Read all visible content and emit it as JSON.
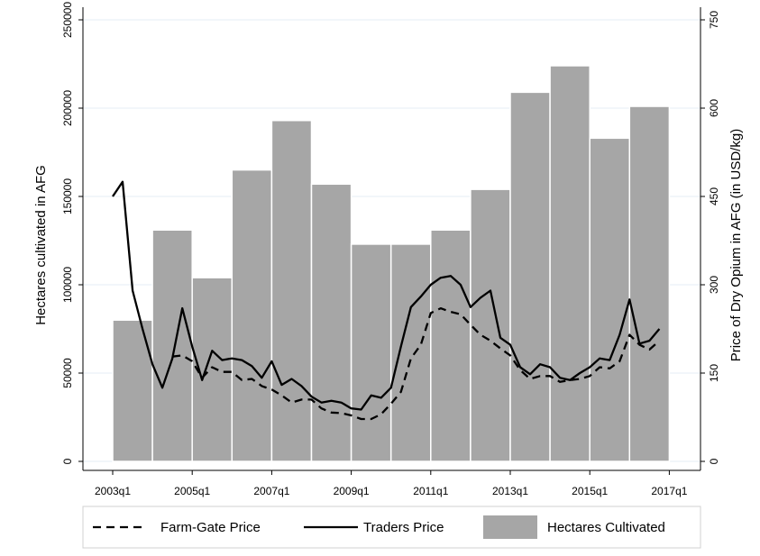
{
  "chart_data": {
    "type": "bar+line",
    "x_ticks": [
      "2003q1",
      "2005q1",
      "2007q1",
      "2009q1",
      "2011q1",
      "2013q1",
      "2015q1",
      "2017q1"
    ],
    "y_left": {
      "label": "Hectares cultivated in AFG",
      "ticks": [
        "0",
        "50000",
        "100000",
        "150000",
        "200000",
        "250000"
      ],
      "range": [
        0,
        250000
      ]
    },
    "y_right": {
      "label": "Price of Dry Opium in AFG (in USD/kg)",
      "ticks": [
        "0",
        "150",
        "300",
        "450",
        "600",
        "750"
      ],
      "range": [
        0,
        750
      ]
    },
    "bars": {
      "name": "Hectares Cultivated",
      "color": "#a6a6a6",
      "years": [
        2003,
        2004,
        2005,
        2006,
        2007,
        2008,
        2009,
        2010,
        2011,
        2012,
        2013,
        2014,
        2015,
        2016
      ],
      "values": [
        80000,
        131000,
        104000,
        165000,
        193000,
        157000,
        123000,
        123000,
        131000,
        154000,
        209000,
        224000,
        183000,
        201000
      ]
    },
    "series": [
      {
        "name": "Traders Price",
        "style": "solid",
        "x": [
          2003.0,
          2003.25,
          2003.5,
          2003.75,
          2004.0,
          2004.25,
          2004.5,
          2004.75,
          2005.0,
          2005.25,
          2005.5,
          2005.75,
          2006.0,
          2006.25,
          2006.5,
          2006.75,
          2007.0,
          2007.25,
          2007.5,
          2007.75,
          2008.0,
          2008.25,
          2008.5,
          2008.75,
          2009.0,
          2009.25,
          2009.5,
          2009.75,
          2010.0,
          2010.25,
          2010.5,
          2010.75,
          2011.0,
          2011.25,
          2011.5,
          2011.75,
          2012.0,
          2012.25,
          2012.5,
          2012.75,
          2013.0,
          2013.25,
          2013.5,
          2013.75,
          2014.0,
          2014.25,
          2014.5,
          2014.75,
          2015.0,
          2015.25,
          2015.5,
          2015.75,
          2016.0,
          2016.25,
          2016.5,
          2016.75
        ],
        "values": [
          450,
          475,
          290,
          225,
          165,
          125,
          175,
          260,
          195,
          138,
          188,
          172,
          175,
          172,
          162,
          142,
          170,
          130,
          140,
          128,
          110,
          100,
          103,
          100,
          90,
          88,
          112,
          108,
          125,
          195,
          262,
          280,
          300,
          312,
          315,
          300,
          262,
          278,
          290,
          210,
          198,
          160,
          148,
          165,
          160,
          142,
          138,
          150,
          160,
          175,
          172,
          215,
          275,
          200,
          205,
          225
        ]
      },
      {
        "name": "Farm-Gate Price",
        "style": "dashed",
        "x": [
          2004.5,
          2004.75,
          2005.0,
          2005.25,
          2005.5,
          2005.75,
          2006.0,
          2006.25,
          2006.5,
          2006.75,
          2007.0,
          2007.25,
          2007.5,
          2007.75,
          2008.0,
          2008.25,
          2008.5,
          2008.75,
          2009.0,
          2009.25,
          2009.5,
          2009.75,
          2010.0,
          2010.25,
          2010.5,
          2010.75,
          2011.0,
          2011.25,
          2011.5,
          2011.75,
          2012.0,
          2012.25,
          2012.5,
          2012.75,
          2013.0,
          2013.25,
          2013.5,
          2013.75,
          2014.0,
          2014.25,
          2014.5,
          2014.75,
          2015.0,
          2015.25,
          2015.5,
          2015.75,
          2016.0,
          2016.25,
          2016.5,
          2016.75
        ],
        "values": [
          178,
          180,
          170,
          142,
          160,
          152,
          152,
          138,
          140,
          128,
          122,
          112,
          100,
          105,
          105,
          90,
          83,
          82,
          78,
          72,
          72,
          80,
          98,
          118,
          175,
          198,
          252,
          260,
          254,
          250,
          232,
          215,
          205,
          192,
          180,
          155,
          140,
          145,
          145,
          135,
          138,
          140,
          145,
          160,
          158,
          170,
          215,
          198,
          190,
          205
        ]
      }
    ],
    "legend": [
      {
        "label": "Farm-Gate Price",
        "kind": "dashed"
      },
      {
        "label": "Traders Price",
        "kind": "solid"
      },
      {
        "label": "Hectares Cultivated",
        "kind": "bar"
      }
    ],
    "legend_position": "bottom",
    "grid": "horizontal"
  }
}
